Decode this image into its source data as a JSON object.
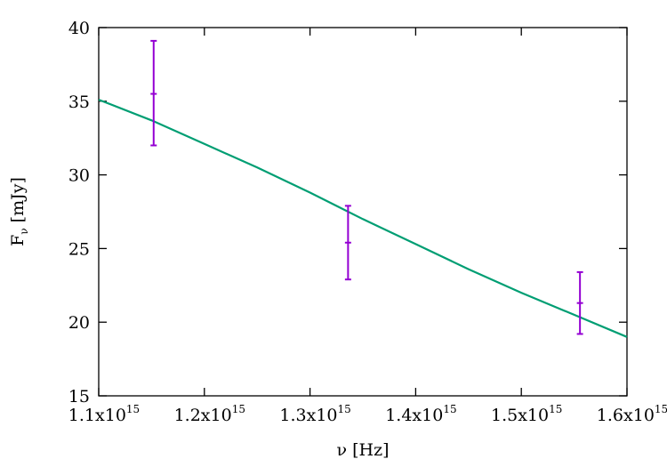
{
  "chart_data": {
    "type": "scatter",
    "xlabel": "ν [Hz]",
    "ylabel_main": "F",
    "ylabel_sub": "ν",
    "ylabel_unit": " [mJy]",
    "xlim": [
      1100000000000000.0,
      1600000000000000.0
    ],
    "ylim": [
      15,
      40
    ],
    "x_ticks": [
      {
        "value": 1100000000000000.0,
        "mantissa": "1.1x10",
        "exp": "15"
      },
      {
        "value": 1200000000000000.0,
        "mantissa": "1.2x10",
        "exp": "15"
      },
      {
        "value": 1300000000000000.0,
        "mantissa": "1.3x10",
        "exp": "15"
      },
      {
        "value": 1400000000000000.0,
        "mantissa": "1.4x10",
        "exp": "15"
      },
      {
        "value": 1500000000000000.0,
        "mantissa": "1.5x10",
        "exp": "15"
      },
      {
        "value": 1600000000000000.0,
        "mantissa": "1.6x10",
        "exp": "15"
      }
    ],
    "y_ticks": [
      15,
      20,
      25,
      30,
      35,
      40
    ],
    "grid": false,
    "series": [
      {
        "kind": "errorbars",
        "color": "#9400d3",
        "points": [
          {
            "x": 1152000000000000.0,
            "y": 35.5,
            "ylow": 32.0,
            "yhigh": 39.1
          },
          {
            "x": 1336000000000000.0,
            "y": 25.4,
            "ylow": 22.9,
            "yhigh": 27.9
          },
          {
            "x": 1555500000000000.0,
            "y": 21.3,
            "ylow": 19.2,
            "yhigh": 23.4
          }
        ]
      },
      {
        "kind": "line",
        "color": "#009e73",
        "x": [
          1100000000000000.0,
          1150000000000000.0,
          1200000000000000.0,
          1250000000000000.0,
          1300000000000000.0,
          1350000000000000.0,
          1400000000000000.0,
          1450000000000000.0,
          1500000000000000.0,
          1550000000000000.0,
          1600000000000000.0
        ],
        "y": [
          35.1,
          33.7,
          32.1,
          30.5,
          28.8,
          27.0,
          25.3,
          23.6,
          22.0,
          20.5,
          19.0
        ]
      }
    ]
  }
}
